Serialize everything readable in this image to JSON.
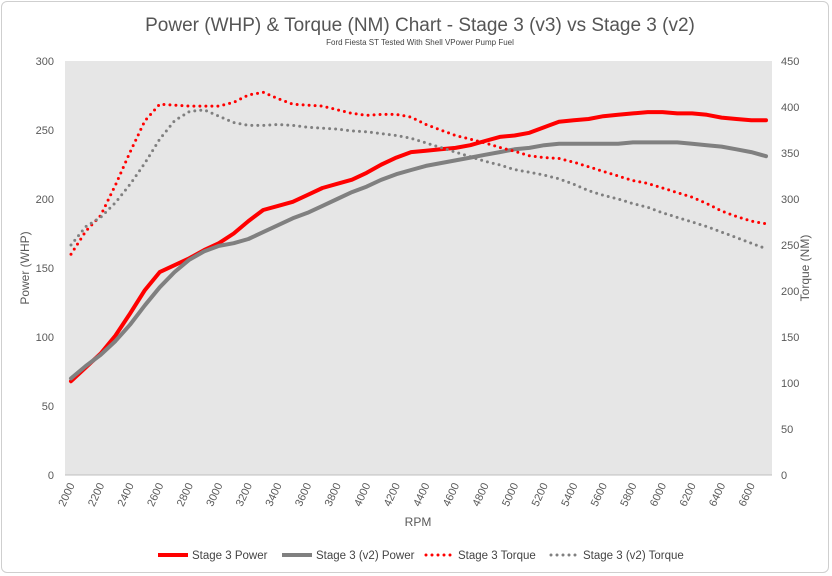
{
  "chart_data": {
    "type": "line",
    "title": "Power (WHP) & Torque (NM) Chart - Stage 3 (v3) vs Stage 3 (v2)",
    "subtitle": "Ford Fiesta ST Tested With Shell VPower Pump Fuel",
    "xlabel": "RPM",
    "ylabel_left": "Power (WHP)",
    "ylabel_right": "Torque (NM)",
    "xlim": [
      2000,
      6700
    ],
    "ylim_left": [
      0,
      300
    ],
    "ylim_right": [
      0,
      450
    ],
    "x_ticks": [
      2000,
      2200,
      2400,
      2600,
      2800,
      3000,
      3200,
      3400,
      3600,
      3800,
      4000,
      4200,
      4400,
      4600,
      4800,
      5000,
      5200,
      5400,
      5600,
      5800,
      6000,
      6200,
      6400,
      6600
    ],
    "y_ticks_left": [
      0,
      50,
      100,
      150,
      200,
      250,
      300
    ],
    "y_ticks_right": [
      0,
      50,
      100,
      150,
      200,
      250,
      300,
      350,
      400,
      450
    ],
    "grid": false,
    "legend_position": "bottom",
    "x": [
      2000,
      2100,
      2200,
      2300,
      2400,
      2500,
      2600,
      2700,
      2800,
      2900,
      3000,
      3100,
      3200,
      3300,
      3400,
      3500,
      3600,
      3700,
      3800,
      3900,
      4000,
      4100,
      4200,
      4300,
      4400,
      4500,
      4600,
      4700,
      4800,
      4900,
      5000,
      5100,
      5200,
      5300,
      5400,
      5500,
      5600,
      5700,
      5800,
      5900,
      6000,
      6100,
      6200,
      6300,
      6400,
      6500,
      6600,
      6700
    ],
    "series": [
      {
        "name": "Stage 3 Power",
        "axis": "left",
        "style": "solid",
        "color": "#ff0000",
        "values": [
          68,
          78,
          88,
          101,
          117,
          134,
          147,
          152,
          157,
          163,
          168,
          175,
          184,
          192,
          195,
          198,
          203,
          208,
          211,
          214,
          219,
          225,
          230,
          234,
          235,
          236,
          237,
          239,
          242,
          245,
          246,
          248,
          252,
          256,
          257,
          258,
          260,
          261,
          262,
          263,
          263,
          262,
          262,
          261,
          259,
          258,
          257,
          257
        ]
      },
      {
        "name": "Stage 3 (v2) Power",
        "axis": "left",
        "style": "solid",
        "color": "#808080",
        "values": [
          70,
          79,
          87,
          97,
          109,
          123,
          136,
          147,
          156,
          162,
          166,
          168,
          171,
          176,
          181,
          186,
          190,
          195,
          200,
          205,
          209,
          214,
          218,
          221,
          224,
          226,
          228,
          230,
          232,
          234,
          236,
          237,
          239,
          240,
          240,
          240,
          240,
          240,
          241,
          241,
          241,
          241,
          240,
          239,
          238,
          236,
          234,
          231
        ]
      },
      {
        "name": "Stage 3 Torque",
        "axis": "right",
        "style": "dotted",
        "color": "#ff0000",
        "values": [
          240,
          265,
          282,
          315,
          351,
          385,
          403,
          402,
          401,
          401,
          401,
          405,
          413,
          416,
          409,
          403,
          402,
          401,
          397,
          393,
          391,
          392,
          392,
          389,
          381,
          375,
          369,
          365,
          361,
          356,
          352,
          347,
          345,
          344,
          340,
          335,
          330,
          325,
          320,
          317,
          312,
          307,
          302,
          295,
          287,
          281,
          276,
          273
        ]
      },
      {
        "name": "Stage 3 (v2) Torque",
        "axis": "right",
        "style": "dotted",
        "color": "#808080",
        "values": [
          250,
          270,
          280,
          296,
          316,
          339,
          365,
          385,
          395,
          397,
          390,
          383,
          380,
          380,
          381,
          380,
          378,
          377,
          376,
          374,
          373,
          371,
          369,
          366,
          361,
          356,
          351,
          346,
          341,
          337,
          332,
          329,
          326,
          322,
          316,
          309,
          304,
          300,
          295,
          291,
          285,
          280,
          275,
          270,
          264,
          258,
          252,
          246
        ]
      }
    ]
  },
  "legend": {
    "items": [
      {
        "label": "Stage 3 Power",
        "color": "#ff0000",
        "style": "solid"
      },
      {
        "label": "Stage 3 (v2) Power",
        "color": "#808080",
        "style": "solid"
      },
      {
        "label": "Stage 3 Torque",
        "color": "#ff0000",
        "style": "dotted"
      },
      {
        "label": "Stage 3 (v2) Torque",
        "color": "#808080",
        "style": "dotted"
      }
    ]
  },
  "colors": {
    "plot_background": "#e6e6e6",
    "stage3": "#ff0000",
    "stage3_v2": "#808080"
  }
}
